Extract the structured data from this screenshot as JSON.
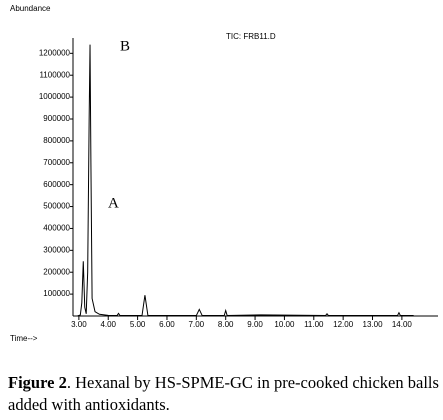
{
  "chart_data": {
    "type": "line",
    "y_label": "Abundance",
    "x_label": "Time-->",
    "subtitle": "TIC: FRB11.D",
    "annotations": [
      "A",
      "B"
    ],
    "x": [
      2.95,
      3.05,
      3.1,
      3.15,
      3.2,
      3.25,
      3.3,
      3.35,
      3.38,
      3.41,
      3.45,
      3.55,
      3.7,
      4.0,
      4.3,
      4.35,
      4.4,
      5.15,
      5.25,
      5.35,
      7.0,
      7.1,
      7.2,
      7.95,
      8.0,
      8.05,
      9.2,
      11.4,
      11.45,
      11.5,
      13.85,
      13.9,
      13.95,
      14.4
    ],
    "series": [
      {
        "color": "#000000",
        "values": [
          0,
          5000,
          60000,
          250000,
          40000,
          10000,
          200000,
          900000,
          1240000,
          700000,
          80000,
          20000,
          8000,
          3000,
          2000,
          12000,
          2000,
          2000,
          95000,
          3000,
          2000,
          30000,
          2000,
          2000,
          25000,
          2000,
          5000,
          2000,
          10000,
          2000,
          2000,
          15000,
          2000,
          2000
        ]
      }
    ],
    "xlim": [
      2.8,
      15.23
    ],
    "ylim": [
      0,
      1270000
    ],
    "xticks": [
      {
        "value": 3,
        "label": "3.00"
      },
      {
        "value": 4,
        "label": "4.00"
      },
      {
        "value": 5,
        "label": "5.00"
      },
      {
        "value": 6,
        "label": "6.00"
      },
      {
        "value": 7,
        "label": "7.00"
      },
      {
        "value": 8,
        "label": "8.00"
      },
      {
        "value": 9,
        "label": "9.00"
      },
      {
        "value": 10,
        "label": "10.00"
      },
      {
        "value": 11,
        "label": "11.00"
      },
      {
        "value": 12,
        "label": "12.00"
      },
      {
        "value": 13,
        "label": "13.00"
      },
      {
        "value": 14,
        "label": "14.00"
      }
    ],
    "yticks": [
      100000,
      200000,
      300000,
      400000,
      500000,
      600000,
      700000,
      800000,
      900000,
      1000000,
      1100000,
      1200000
    ],
    "caption": {
      "label": "Figure 2",
      "text": ". Hexanal by HS-SPME-GC in pre-cooked chicken balls added with antioxidants."
    }
  }
}
